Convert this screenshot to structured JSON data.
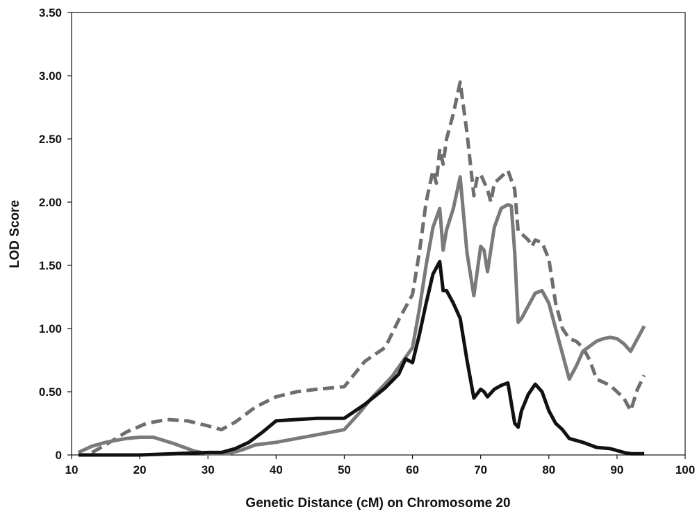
{
  "chart_data": {
    "type": "line",
    "title": "",
    "xlabel": "Genetic Distance (cM) on Chromosome 20",
    "ylabel": "LOD Score",
    "xlim": [
      10,
      100
    ],
    "ylim": [
      0,
      3.5
    ],
    "x_ticks": [
      "10",
      "20",
      "30",
      "40",
      "50",
      "60",
      "70",
      "80",
      "90",
      "100"
    ],
    "y_ticks": [
      "0",
      "0.50",
      "1.00",
      "1.50",
      "2.00",
      "2.50",
      "3.00",
      "3.50"
    ],
    "grid": false,
    "legend": "none",
    "series": [
      {
        "color": "#6e6e6e",
        "style": "dashed",
        "points": [
          [
            13,
            0.02
          ],
          [
            15,
            0.08
          ],
          [
            18,
            0.18
          ],
          [
            21,
            0.25
          ],
          [
            24,
            0.28
          ],
          [
            27,
            0.27
          ],
          [
            30,
            0.23
          ],
          [
            32,
            0.2
          ],
          [
            34,
            0.26
          ],
          [
            37,
            0.38
          ],
          [
            40,
            0.46
          ],
          [
            43,
            0.5
          ],
          [
            46,
            0.52
          ],
          [
            50,
            0.54
          ],
          [
            53,
            0.74
          ],
          [
            56,
            0.85
          ],
          [
            58,
            1.07
          ],
          [
            60,
            1.27
          ],
          [
            61,
            1.6
          ],
          [
            62,
            2.0
          ],
          [
            63,
            2.25
          ],
          [
            63.5,
            2.15
          ],
          [
            64,
            2.42
          ],
          [
            64.5,
            2.3
          ],
          [
            65,
            2.5
          ],
          [
            66,
            2.7
          ],
          [
            67,
            2.95
          ],
          [
            68,
            2.55
          ],
          [
            69,
            2.05
          ],
          [
            69.5,
            2.2
          ],
          [
            70,
            2.22
          ],
          [
            71,
            2.1
          ],
          [
            71.5,
            2.0
          ],
          [
            72,
            2.15
          ],
          [
            74,
            2.25
          ],
          [
            75,
            2.1
          ],
          [
            75.5,
            1.77
          ],
          [
            76,
            1.75
          ],
          [
            77,
            1.7
          ],
          [
            77.5,
            1.65
          ],
          [
            78,
            1.7
          ],
          [
            79,
            1.68
          ],
          [
            80,
            1.55
          ],
          [
            81,
            1.2
          ],
          [
            82,
            1.0
          ],
          [
            83,
            0.92
          ],
          [
            84,
            0.9
          ],
          [
            85,
            0.85
          ],
          [
            86,
            0.75
          ],
          [
            87,
            0.6
          ],
          [
            89,
            0.55
          ],
          [
            91,
            0.45
          ],
          [
            92,
            0.35
          ],
          [
            93,
            0.52
          ],
          [
            94,
            0.63
          ]
        ]
      },
      {
        "color": "#7a7a7a",
        "style": "solid",
        "points": [
          [
            11,
            0.02
          ],
          [
            13,
            0.07
          ],
          [
            15,
            0.1
          ],
          [
            18,
            0.13
          ],
          [
            20,
            0.14
          ],
          [
            22,
            0.14
          ],
          [
            25,
            0.09
          ],
          [
            28,
            0.03
          ],
          [
            30,
            0.01
          ],
          [
            33,
            0.01
          ],
          [
            35,
            0.04
          ],
          [
            37,
            0.08
          ],
          [
            40,
            0.1
          ],
          [
            43,
            0.13
          ],
          [
            46,
            0.16
          ],
          [
            50,
            0.2
          ],
          [
            52,
            0.32
          ],
          [
            54,
            0.45
          ],
          [
            57,
            0.62
          ],
          [
            60,
            0.85
          ],
          [
            61,
            1.15
          ],
          [
            62,
            1.5
          ],
          [
            63,
            1.8
          ],
          [
            64,
            1.95
          ],
          [
            64.5,
            1.62
          ],
          [
            65,
            1.78
          ],
          [
            66,
            1.95
          ],
          [
            67,
            2.2
          ],
          [
            68,
            1.6
          ],
          [
            69,
            1.26
          ],
          [
            70,
            1.65
          ],
          [
            70.5,
            1.62
          ],
          [
            71,
            1.45
          ],
          [
            72,
            1.8
          ],
          [
            73,
            1.95
          ],
          [
            74,
            1.98
          ],
          [
            74.5,
            1.97
          ],
          [
            75,
            1.6
          ],
          [
            75.5,
            1.05
          ],
          [
            76,
            1.08
          ],
          [
            77,
            1.18
          ],
          [
            78,
            1.28
          ],
          [
            79,
            1.3
          ],
          [
            80,
            1.2
          ],
          [
            81,
            1.0
          ],
          [
            82,
            0.8
          ],
          [
            83,
            0.6
          ],
          [
            84,
            0.7
          ],
          [
            85,
            0.82
          ],
          [
            86,
            0.86
          ],
          [
            87,
            0.9
          ],
          [
            88,
            0.92
          ],
          [
            89,
            0.93
          ],
          [
            90,
            0.92
          ],
          [
            91,
            0.88
          ],
          [
            92,
            0.82
          ],
          [
            93,
            0.92
          ],
          [
            94,
            1.02
          ]
        ]
      },
      {
        "color": "#111111",
        "style": "solid",
        "points": [
          [
            11,
            0.0
          ],
          [
            15,
            0.0
          ],
          [
            20,
            0.0
          ],
          [
            25,
            0.01
          ],
          [
            30,
            0.02
          ],
          [
            32,
            0.02
          ],
          [
            34,
            0.05
          ],
          [
            36,
            0.1
          ],
          [
            38,
            0.18
          ],
          [
            40,
            0.27
          ],
          [
            43,
            0.28
          ],
          [
            46,
            0.29
          ],
          [
            50,
            0.29
          ],
          [
            53,
            0.4
          ],
          [
            56,
            0.53
          ],
          [
            58,
            0.64
          ],
          [
            59,
            0.76
          ],
          [
            60,
            0.73
          ],
          [
            61,
            0.95
          ],
          [
            62,
            1.2
          ],
          [
            63,
            1.43
          ],
          [
            64,
            1.53
          ],
          [
            64.5,
            1.3
          ],
          [
            65,
            1.3
          ],
          [
            66,
            1.2
          ],
          [
            67,
            1.08
          ],
          [
            68,
            0.75
          ],
          [
            69,
            0.45
          ],
          [
            70,
            0.52
          ],
          [
            70.5,
            0.5
          ],
          [
            71,
            0.46
          ],
          [
            72,
            0.52
          ],
          [
            73,
            0.55
          ],
          [
            74,
            0.57
          ],
          [
            75,
            0.25
          ],
          [
            75.5,
            0.22
          ],
          [
            76,
            0.35
          ],
          [
            77,
            0.48
          ],
          [
            78,
            0.56
          ],
          [
            79,
            0.5
          ],
          [
            80,
            0.35
          ],
          [
            81,
            0.25
          ],
          [
            82,
            0.2
          ],
          [
            83,
            0.13
          ],
          [
            85,
            0.1
          ],
          [
            87,
            0.06
          ],
          [
            89,
            0.05
          ],
          [
            91,
            0.02
          ],
          [
            92,
            0.01
          ],
          [
            94,
            0.01
          ]
        ]
      }
    ]
  }
}
